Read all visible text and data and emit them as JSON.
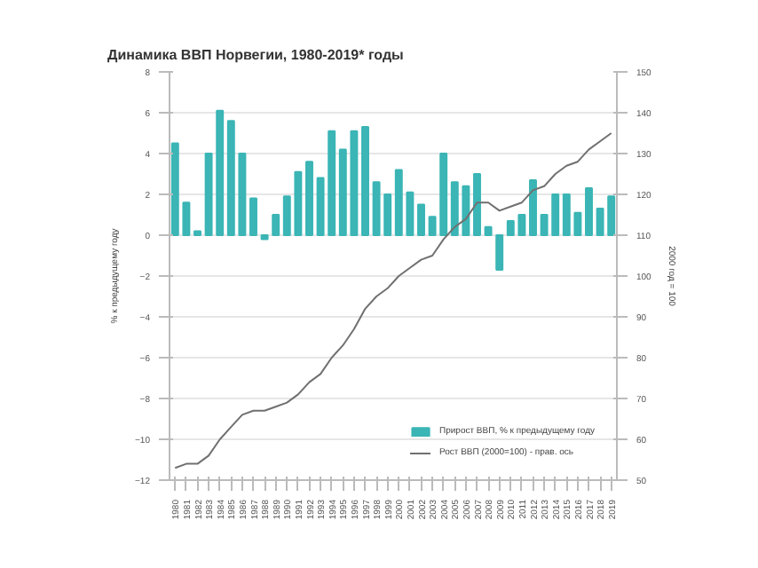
{
  "chart_data": {
    "type": "bar",
    "title": "Динамика ВВП Норвегии, 1980-2019* годы",
    "ylabel": "% к предыдущему году",
    "y2label": "2000 год = 100",
    "categories": [
      "1980",
      "1981",
      "1982",
      "1983",
      "1984",
      "1985",
      "1986",
      "1987",
      "1988",
      "1989",
      "1990",
      "1991",
      "1992",
      "1993",
      "1994",
      "1995",
      "1996",
      "1997",
      "1998",
      "1999",
      "2000",
      "2001",
      "2002",
      "2003",
      "2004",
      "2005",
      "2006",
      "2007",
      "2008",
      "2009",
      "2010",
      "2011",
      "2012",
      "2013",
      "2014",
      "2015",
      "2016",
      "2017",
      "2018",
      "2019"
    ],
    "series": [
      {
        "name": "Прирост ВВП, % к предыдущему году",
        "color": "#3bb5b5",
        "values": [
          4.5,
          1.6,
          0.2,
          4.0,
          6.1,
          5.6,
          4.0,
          1.8,
          -0.2,
          1.0,
          1.9,
          3.1,
          3.6,
          2.8,
          5.1,
          4.2,
          5.1,
          5.3,
          2.6,
          2.0,
          3.2,
          2.1,
          1.5,
          0.9,
          4.0,
          2.6,
          2.4,
          3.0,
          0.4,
          -1.7,
          0.7,
          1.0,
          2.7,
          1.0,
          2.0,
          2.0,
          1.1,
          2.3,
          1.3,
          1.9
        ]
      },
      {
        "name": "Рост ВВП (2000=100) - прав. ось",
        "type": "line",
        "axis": "y2",
        "color": "#707070",
        "values": [
          53,
          54,
          54,
          56,
          60,
          63,
          66,
          67,
          67,
          68,
          69,
          71,
          74,
          76,
          80,
          83,
          87,
          92,
          95,
          97,
          100,
          102,
          104,
          105,
          109,
          112,
          114,
          118,
          118,
          116,
          117,
          118,
          121,
          122,
          125,
          127,
          128,
          131,
          133,
          135
        ]
      }
    ],
    "ylim": [
      -12,
      8
    ],
    "yticks": [
      -12,
      -10,
      -8,
      -6,
      -4,
      -2,
      0,
      2,
      4,
      6,
      8
    ],
    "y2lim": [
      50,
      150
    ],
    "y2ticks": [
      50,
      60,
      70,
      80,
      90,
      100,
      110,
      120,
      130,
      140,
      150
    ],
    "grid": "y",
    "legend": "bottom right",
    "marker": "none",
    "line_style": "solid"
  }
}
